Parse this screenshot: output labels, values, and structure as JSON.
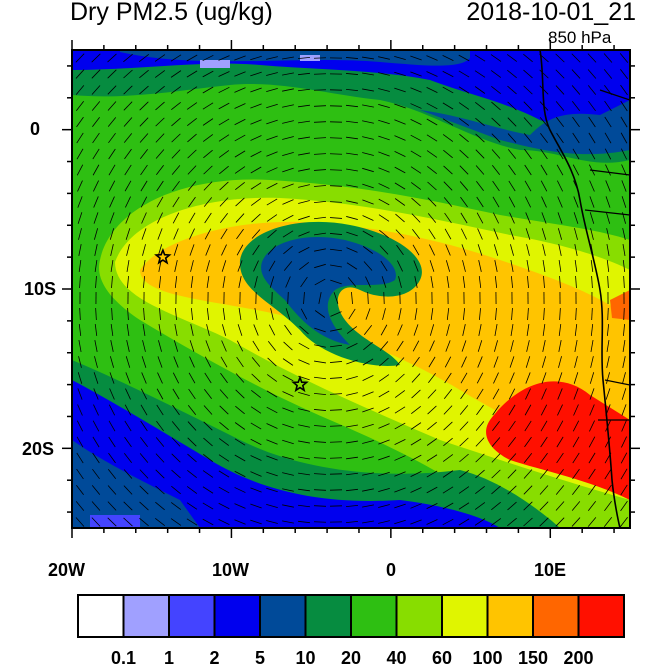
{
  "header": {
    "title": "Dry PM2.5 (ug/kg)",
    "datetime": "2018-10-01_21",
    "level": "850 hPa"
  },
  "map": {
    "lon_range": [
      -20,
      15
    ],
    "lat_range": [
      -25,
      5
    ],
    "x_ticks": [
      "20W",
      "10W",
      "0",
      "10E"
    ],
    "y_ticks": [
      "0",
      "10S",
      "20S"
    ],
    "markers": [
      {
        "symbol": "star",
        "lon": -14.3,
        "lat": -8
      },
      {
        "symbol": "star",
        "lon": -5.7,
        "lat": -16
      }
    ]
  },
  "colorbar": {
    "colors": [
      "#ffffff",
      "#a0a0ff",
      "#4444ff",
      "#0000ee",
      "#004a99",
      "#068c40",
      "#2ebf12",
      "#88dd00",
      "#e0f500",
      "#ffc400",
      "#ff6600",
      "#ff1000"
    ],
    "labels": [
      "0.1",
      "1",
      "2",
      "5",
      "10",
      "20",
      "40",
      "60",
      "100",
      "150",
      "200"
    ]
  }
}
